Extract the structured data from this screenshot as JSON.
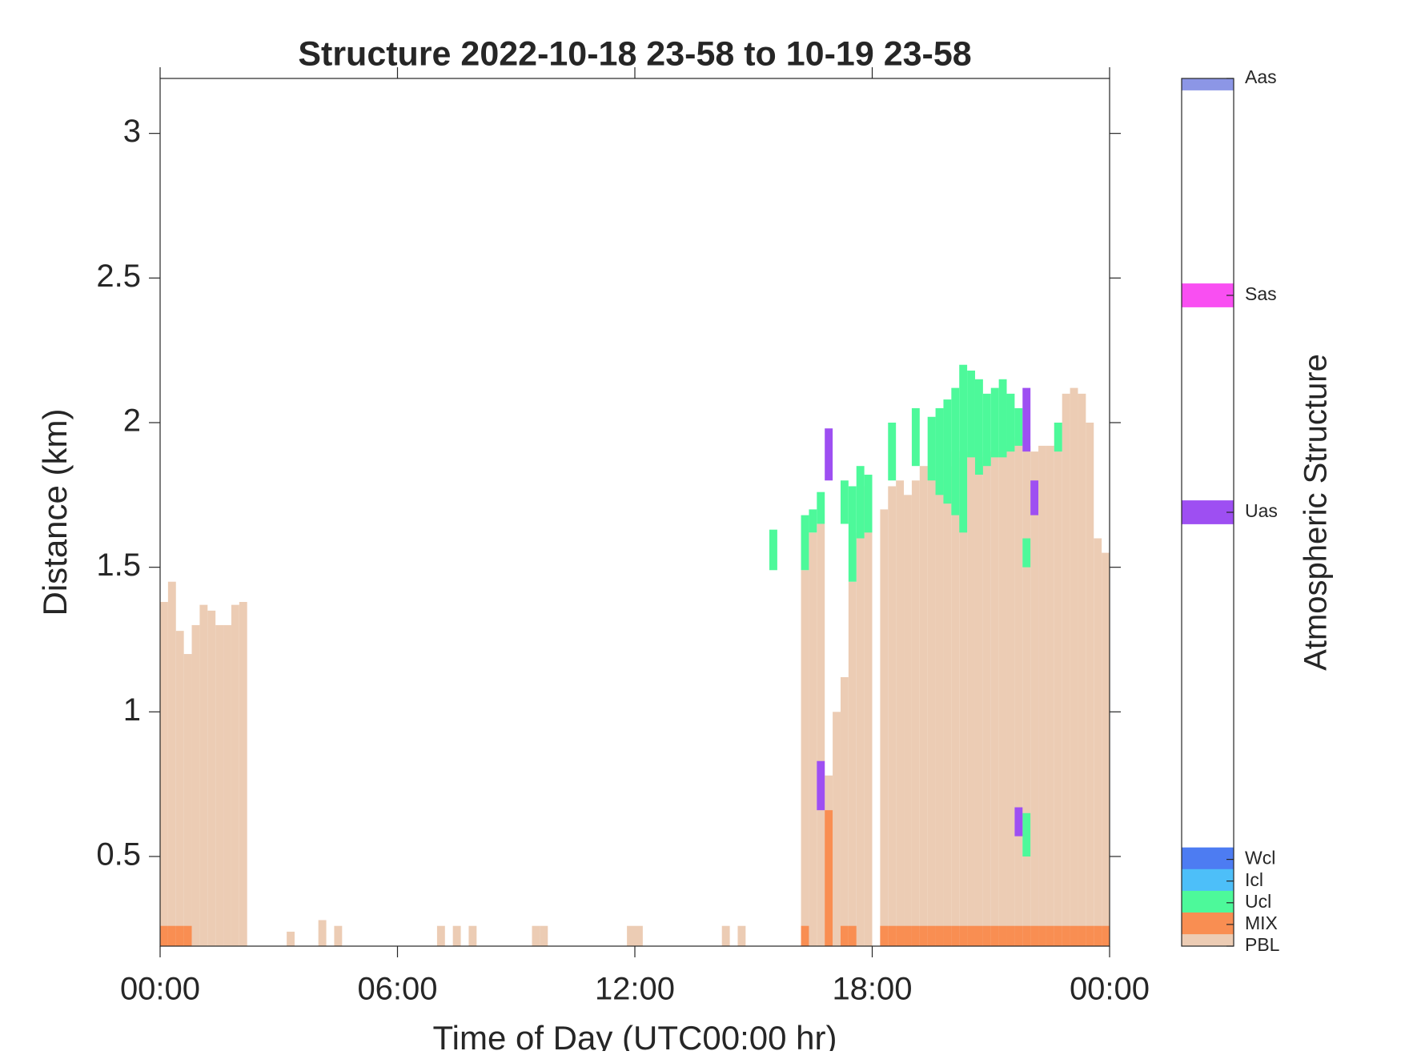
{
  "chart_data": {
    "type": "bar",
    "title": "Structure 2022-10-18 23-58 to 10-19 23-58",
    "x_label": "Time of Day (UTC00:00 hr)",
    "y_label": "Distance (km)",
    "xlim": [
      0,
      24
    ],
    "xticks": [
      {
        "value": 0,
        "label": "00:00"
      },
      {
        "value": 6,
        "label": "06:00"
      },
      {
        "value": 12,
        "label": "12:00"
      },
      {
        "value": 18,
        "label": "18:00"
      },
      {
        "value": 24,
        "label": "00:00"
      }
    ],
    "ylim": [
      0.19,
      3.19
    ],
    "yticks": [
      0.5,
      1,
      1.5,
      2,
      2.5,
      3
    ],
    "series": [
      {
        "color": "#ecccb4",
        "x": [
          0,
          0.2,
          0.4,
          0.6,
          0.8,
          1.0,
          1.2,
          1.4,
          1.6,
          1.8,
          2.0,
          3.2,
          4.0,
          4.4,
          7.0,
          7.4,
          7.8,
          9.4,
          9.6,
          11.8,
          12.0,
          14.2,
          14.6,
          16.2,
          16.4,
          16.6,
          16.8,
          17.0,
          17.2,
          17.4,
          17.6,
          17.8,
          18.2,
          18.4,
          18.6,
          18.8,
          19.0,
          19.2,
          19.4,
          19.6,
          19.8,
          20.0,
          20.2,
          20.4,
          20.6,
          20.8,
          21.0,
          21.2,
          21.4,
          21.6,
          21.8,
          22.0,
          22.2,
          22.4,
          22.6,
          22.8,
          23.0,
          23.2,
          23.4,
          23.6,
          23.8
        ],
        "values": [
          1.38,
          1.45,
          1.28,
          1.2,
          1.3,
          1.37,
          1.35,
          1.3,
          1.3,
          1.37,
          1.38,
          0.24,
          0.28,
          0.26,
          0.26,
          0.26,
          0.26,
          0.26,
          0.26,
          0.26,
          0.26,
          0.26,
          0.26,
          1.49,
          1.62,
          1.65,
          0.78,
          1.0,
          1.12,
          1.45,
          1.62,
          1.78,
          1.7,
          1.78,
          1.8,
          1.75,
          1.8,
          1.85,
          1.85,
          1.8,
          1.85,
          1.9,
          1.88,
          1.9,
          1.88,
          1.9,
          1.9,
          1.9,
          1.92,
          1.95,
          1.92,
          1.9,
          1.92,
          1.92,
          2.0,
          2.1,
          2.12,
          2.1,
          2.0,
          1.6,
          1.55
        ]
      },
      {
        "color": "#f98e52",
        "x": [
          0,
          0.2,
          0.4,
          0.6,
          16.2,
          16.8,
          17.2,
          17.4,
          18.2,
          18.4,
          18.6,
          18.8,
          19.0,
          19.2,
          19.4,
          19.6,
          19.8,
          20.0,
          20.2,
          20.4,
          20.6,
          20.8,
          21.0,
          21.2,
          21.4,
          21.6,
          21.8,
          22.0,
          22.2,
          22.4,
          22.6,
          22.8,
          23.0,
          23.2,
          23.4,
          23.6,
          23.8
        ],
        "values": [
          0.26,
          0.26,
          0.26,
          0.26,
          0.26,
          0.66,
          0.26,
          0.26,
          0.26,
          0.26,
          0.26,
          0.26,
          0.26,
          0.26,
          0.26,
          0.26,
          0.26,
          0.26,
          0.26,
          0.26,
          0.26,
          0.26,
          0.26,
          0.26,
          0.26,
          0.26,
          0.26,
          0.26,
          0.26,
          0.26,
          0.26,
          0.26,
          0.26,
          0.26,
          0.26,
          0.26,
          0.26
        ]
      },
      {
        "color": "#4df99a",
        "x": [
          15.4,
          16.2,
          16.4,
          16.6,
          17.2,
          17.4,
          17.6,
          17.8,
          18.4,
          19.0,
          19.4,
          19.6,
          19.8,
          20.0,
          20.2,
          20.4,
          20.6,
          20.8,
          21.0,
          21.2,
          21.4,
          21.6,
          21.8,
          21.8,
          22.6
        ],
        "low": [
          1.49,
          1.49,
          1.62,
          1.65,
          1.65,
          1.45,
          1.6,
          1.62,
          1.8,
          1.85,
          1.8,
          1.75,
          1.72,
          1.68,
          1.62,
          1.88,
          1.82,
          1.85,
          1.88,
          1.88,
          1.9,
          1.92,
          1.5,
          0.5,
          1.9
        ],
        "values": [
          1.63,
          1.68,
          1.7,
          1.76,
          1.8,
          1.78,
          1.85,
          1.82,
          2.0,
          2.05,
          2.02,
          2.05,
          2.08,
          2.12,
          2.2,
          2.18,
          2.15,
          2.1,
          2.12,
          2.15,
          2.1,
          2.05,
          1.6,
          0.65,
          2.0
        ]
      },
      {
        "color": "#9e4ff2",
        "x": [
          16.6,
          16.8,
          21.6,
          21.8,
          22.0
        ],
        "low": [
          0.66,
          1.8,
          0.57,
          1.9,
          1.68
        ],
        "values": [
          0.83,
          1.98,
          0.67,
          2.12,
          1.8
        ]
      }
    ],
    "colorbar": {
      "label": "Atmospheric Structure",
      "clim": [
        0.19,
        3.19
      ],
      "ticks": [
        {
          "value": 3.19,
          "label": "Aas"
        },
        {
          "value": 2.44,
          "label": "Sas"
        },
        {
          "value": 1.69,
          "label": "Uas"
        },
        {
          "value": 0.49,
          "label": "Wcl"
        },
        {
          "value": 0.415,
          "label": "Icl"
        },
        {
          "value": 0.34,
          "label": "Ucl"
        },
        {
          "value": 0.265,
          "label": "MIX"
        },
        {
          "value": 0.19,
          "label": "PBL"
        }
      ],
      "colors": [
        "#8c96e6",
        "#f94ff2",
        "#9e4ff2",
        "#4d7cf2",
        "#4dbff9",
        "#4df99a",
        "#f98e52",
        "#ecccb4"
      ]
    }
  }
}
